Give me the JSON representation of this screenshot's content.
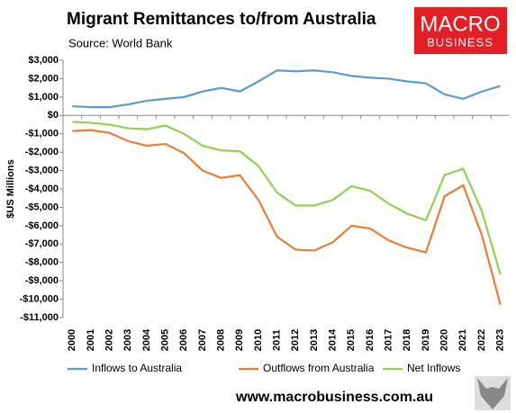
{
  "chart_data": {
    "type": "line",
    "title": "Migrant Remittances to/from Australia",
    "subtitle": "Source: World Bank",
    "logo": [
      "MACRO",
      "BUSINESS"
    ],
    "footer": "www.macrobusiness.com.au",
    "y_label": "$US Millions",
    "categories": [
      "2000",
      "2001",
      "2002",
      "2003",
      "2004",
      "2005",
      "2006",
      "2007",
      "2008",
      "2009",
      "2010",
      "2011",
      "2012",
      "2013",
      "2014",
      "2015",
      "2016",
      "2017",
      "2018",
      "2019",
      "2020",
      "2021",
      "2022",
      "2023"
    ],
    "series": [
      {
        "name": "Inflows to Australia",
        "color": "#5b9bd5",
        "values": [
          500,
          450,
          450,
          600,
          800,
          900,
          1000,
          1300,
          1500,
          1300,
          1850,
          2450,
          2400,
          2450,
          2350,
          2150,
          2050,
          2000,
          1850,
          1750,
          1150,
          900,
          1300,
          1600
        ]
      },
      {
        "name": "Outflows from Australia",
        "color": "#ed7d31",
        "values": [
          -850,
          -800,
          -950,
          -1400,
          -1650,
          -1550,
          -2050,
          -3000,
          -3400,
          -3250,
          -4600,
          -6600,
          -7300,
          -7350,
          -6900,
          -6000,
          -6150,
          -6800,
          -7200,
          -7450,
          -4400,
          -3800,
          -6500,
          -10300
        ]
      },
      {
        "name": "Net Inflows",
        "color": "#92d050",
        "values": [
          -350,
          -400,
          -500,
          -700,
          -750,
          -550,
          -1000,
          -1650,
          -1900,
          -1950,
          -2750,
          -4200,
          -4900,
          -4900,
          -4600,
          -3850,
          -4100,
          -4800,
          -5350,
          -5700,
          -3250,
          -2900,
          -5200,
          -8650
        ]
      }
    ],
    "ylim": [
      -11000,
      3000
    ],
    "yticks": [
      {
        "value": 3000,
        "label": "$3,000"
      },
      {
        "value": 2000,
        "label": "$2,000"
      },
      {
        "value": 1000,
        "label": "$1,000"
      },
      {
        "value": 0,
        "label": "$0"
      },
      {
        "value": -1000,
        "label": "-$1,000"
      },
      {
        "value": -2000,
        "label": "-$2,000"
      },
      {
        "value": -3000,
        "label": "-$3,000"
      },
      {
        "value": -4000,
        "label": "-$4,000"
      },
      {
        "value": -5000,
        "label": "-$5,000"
      },
      {
        "value": -6000,
        "label": "-$6,000"
      },
      {
        "value": -7000,
        "label": "-$7,000"
      },
      {
        "value": -8000,
        "label": "-$8,000"
      },
      {
        "value": -9000,
        "label": "-$9,000"
      },
      {
        "value": -10000,
        "label": "-$10,000"
      },
      {
        "value": -11000,
        "label": "-$11,000"
      }
    ],
    "grid": false,
    "legend": "bottom"
  }
}
